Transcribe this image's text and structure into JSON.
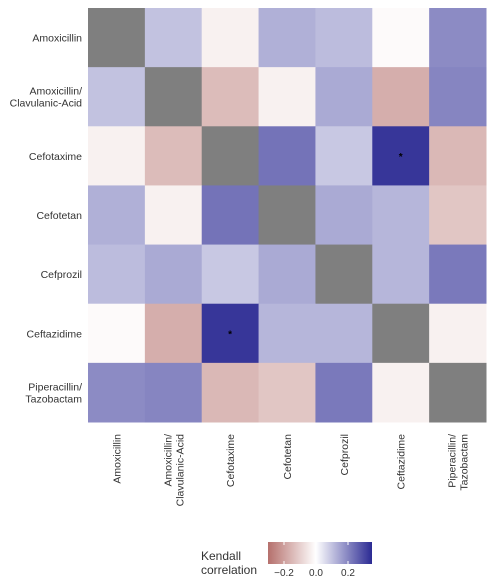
{
  "chart_data": {
    "type": "heatmap",
    "rows": [
      "Amoxicillin",
      "Amoxicillin/\nClavulanic-Acid",
      "Cefotaxime",
      "Cefotetan",
      "Cefprozil",
      "Ceftazidime",
      "Piperacillin/\nTazobactam"
    ],
    "columns": [
      "Amoxicillin",
      "Amoxicillin/\nClavulanic-Acid",
      "Cefotaxime",
      "Cefotetan",
      "Cefprozil",
      "Ceftazidime",
      "Piperacillin/\nTazobactam"
    ],
    "values": [
      [
        null,
        0.1,
        -0.03,
        0.13,
        0.11,
        -0.01,
        0.19
      ],
      [
        0.1,
        null,
        -0.14,
        -0.03,
        0.14,
        -0.17,
        0.2
      ],
      [
        -0.03,
        -0.14,
        null,
        0.23,
        0.09,
        0.33,
        -0.15
      ],
      [
        0.13,
        -0.03,
        0.23,
        null,
        0.14,
        0.12,
        -0.12
      ],
      [
        0.11,
        0.14,
        0.09,
        0.14,
        null,
        0.12,
        0.22
      ],
      [
        -0.01,
        -0.17,
        0.33,
        0.12,
        0.12,
        null,
        -0.03
      ],
      [
        0.19,
        0.2,
        -0.15,
        -0.12,
        0.22,
        -0.03,
        null
      ]
    ],
    "significant": [
      [
        2,
        5
      ],
      [
        5,
        2
      ]
    ],
    "significance_marker": "*",
    "diagonal_color": "#7f7f7f",
    "color_scale": {
      "low": "#b5706c",
      "mid": "#ffffff",
      "high": "#2b2a93",
      "limits": [
        -0.3,
        0.35
      ]
    },
    "legend": {
      "title": "Kendall\ncorrelation",
      "ticks": [
        -0.2,
        0.0,
        0.2
      ],
      "tick_labels": [
        "−0.2",
        "0.0",
        "0.2"
      ],
      "position": "bottom"
    }
  }
}
